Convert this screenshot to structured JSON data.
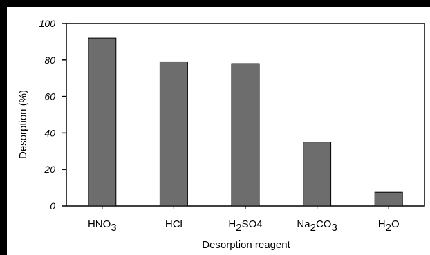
{
  "chart_data": {
    "type": "bar",
    "xlabel": "Desorption reagent",
    "ylabel": "Desorption (%)",
    "ylim": [
      0,
      100
    ],
    "yticks": [
      0,
      20,
      40,
      60,
      80,
      100
    ],
    "grid": false,
    "categories": [
      {
        "label": "HNO3",
        "parts": [
          [
            "HNO",
            false
          ],
          [
            "3",
            true
          ]
        ]
      },
      {
        "label": "HCl",
        "parts": [
          [
            "HCl",
            false
          ]
        ]
      },
      {
        "label": "H2SO4",
        "parts": [
          [
            "H",
            false
          ],
          [
            "2",
            true
          ],
          [
            "SO4",
            false
          ]
        ]
      },
      {
        "label": "Na2CO3",
        "parts": [
          [
            "Na",
            false
          ],
          [
            "2",
            true
          ],
          [
            "CO",
            false
          ],
          [
            "3",
            true
          ]
        ]
      },
      {
        "label": "H2O",
        "parts": [
          [
            "H",
            false
          ],
          [
            "2",
            true
          ],
          [
            "O",
            false
          ]
        ]
      }
    ],
    "values": [
      92,
      79,
      78,
      35,
      7.5
    ],
    "colors": {
      "bar": "#6d6d6d",
      "bar_stroke": "#000000",
      "axis": "#000000"
    }
  }
}
